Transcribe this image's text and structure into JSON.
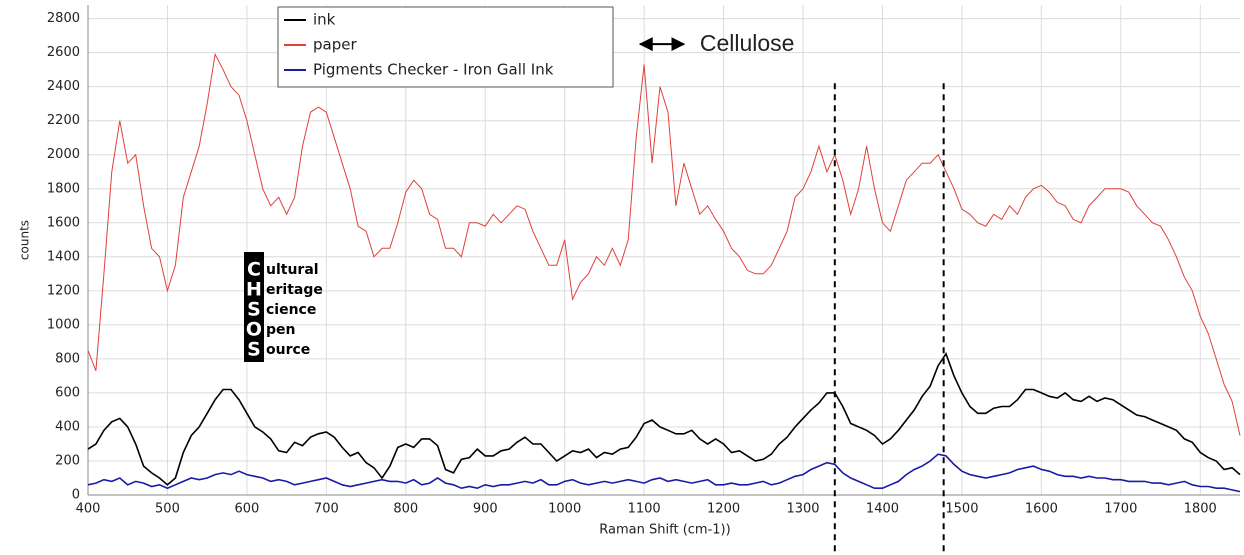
{
  "chart_data": {
    "type": "line",
    "x_label": "Raman Shift (cm-1))",
    "y_label": "counts",
    "xlim": [
      400,
      1850
    ],
    "ylim": [
      0,
      2880
    ],
    "xticks": [
      400,
      500,
      600,
      700,
      800,
      900,
      1000,
      1100,
      1200,
      1300,
      1400,
      1500,
      1600,
      1700,
      1800
    ],
    "yticks": [
      0,
      200,
      400,
      600,
      800,
      1000,
      1200,
      1400,
      1600,
      1800,
      2000,
      2200,
      2400,
      2600,
      2800
    ],
    "grid": true,
    "x": [
      400,
      410,
      420,
      430,
      440,
      450,
      460,
      470,
      480,
      490,
      500,
      510,
      520,
      530,
      540,
      550,
      560,
      570,
      580,
      590,
      600,
      610,
      620,
      630,
      640,
      650,
      660,
      670,
      680,
      690,
      700,
      710,
      720,
      730,
      740,
      750,
      760,
      770,
      780,
      790,
      800,
      810,
      820,
      830,
      840,
      850,
      860,
      870,
      880,
      890,
      900,
      910,
      920,
      930,
      940,
      950,
      960,
      970,
      980,
      990,
      1000,
      1010,
      1020,
      1030,
      1040,
      1050,
      1060,
      1070,
      1080,
      1090,
      1100,
      1110,
      1120,
      1130,
      1140,
      1150,
      1160,
      1170,
      1180,
      1190,
      1200,
      1210,
      1220,
      1230,
      1240,
      1250,
      1260,
      1270,
      1280,
      1290,
      1300,
      1310,
      1320,
      1330,
      1340,
      1350,
      1360,
      1370,
      1380,
      1390,
      1400,
      1410,
      1420,
      1430,
      1440,
      1450,
      1460,
      1470,
      1480,
      1490,
      1500,
      1510,
      1520,
      1530,
      1540,
      1550,
      1560,
      1570,
      1580,
      1590,
      1600,
      1610,
      1620,
      1630,
      1640,
      1650,
      1660,
      1670,
      1680,
      1690,
      1700,
      1710,
      1720,
      1730,
      1740,
      1750,
      1760,
      1770,
      1780,
      1790,
      1800,
      1810,
      1820,
      1830,
      1840,
      1850
    ],
    "series": [
      {
        "name": "ink",
        "color": "#000000",
        "values": [
          270,
          300,
          380,
          430,
          450,
          400,
          300,
          170,
          130,
          100,
          60,
          100,
          250,
          350,
          400,
          480,
          560,
          620,
          620,
          560,
          480,
          400,
          370,
          330,
          260,
          250,
          310,
          290,
          340,
          360,
          370,
          340,
          280,
          230,
          250,
          190,
          160,
          100,
          170,
          280,
          300,
          280,
          330,
          330,
          290,
          150,
          130,
          210,
          220,
          270,
          230,
          230,
          260,
          270,
          310,
          340,
          300,
          300,
          250,
          200,
          230,
          260,
          250,
          270,
          220,
          250,
          240,
          270,
          280,
          340,
          420,
          440,
          400,
          380,
          360,
          360,
          380,
          330,
          300,
          330,
          300,
          250,
          260,
          230,
          200,
          210,
          240,
          300,
          340,
          400,
          450,
          500,
          540,
          600,
          600,
          520,
          420,
          400,
          380,
          350,
          300,
          330,
          380,
          440,
          500,
          580,
          640,
          760,
          830,
          700,
          600,
          520,
          480,
          480,
          510,
          520,
          520,
          560,
          620,
          620,
          600,
          580,
          570,
          600,
          560,
          550,
          580,
          550,
          570,
          560,
          530,
          500,
          470,
          460,
          440,
          420,
          400,
          380,
          330,
          310,
          250,
          220,
          200,
          150,
          160,
          120
        ]
      },
      {
        "name": "paper",
        "color": "#e0403a",
        "values": [
          850,
          730,
          1300,
          1900,
          2200,
          1950,
          2000,
          1700,
          1450,
          1400,
          1200,
          1350,
          1750,
          1900,
          2050,
          2300,
          2590,
          2500,
          2400,
          2350,
          2200,
          2000,
          1800,
          1700,
          1750,
          1650,
          1750,
          2050,
          2250,
          2280,
          2250,
          2100,
          1950,
          1800,
          1580,
          1550,
          1400,
          1450,
          1450,
          1600,
          1780,
          1850,
          1800,
          1650,
          1620,
          1450,
          1450,
          1400,
          1600,
          1600,
          1580,
          1650,
          1600,
          1650,
          1700,
          1680,
          1550,
          1450,
          1350,
          1350,
          1500,
          1150,
          1250,
          1300,
          1400,
          1350,
          1450,
          1350,
          1500,
          2100,
          2530,
          1950,
          2400,
          2250,
          1700,
          1950,
          1800,
          1650,
          1700,
          1620,
          1550,
          1450,
          1400,
          1320,
          1300,
          1300,
          1350,
          1450,
          1550,
          1750,
          1800,
          1900,
          2050,
          1900,
          2000,
          1850,
          1650,
          1800,
          2050,
          1800,
          1600,
          1550,
          1700,
          1850,
          1900,
          1950,
          1950,
          2000,
          1900,
          1800,
          1680,
          1650,
          1600,
          1580,
          1650,
          1620,
          1700,
          1650,
          1750,
          1800,
          1820,
          1780,
          1720,
          1700,
          1620,
          1600,
          1700,
          1750,
          1800,
          1800,
          1800,
          1780,
          1700,
          1650,
          1600,
          1580,
          1500,
          1400,
          1280,
          1200,
          1050,
          950,
          800,
          650,
          550,
          350
        ]
      },
      {
        "name": "Pigments Checker - Iron Gall Ink",
        "color": "#1a1aa8",
        "values": [
          60,
          70,
          90,
          80,
          100,
          60,
          80,
          70,
          50,
          60,
          40,
          60,
          80,
          100,
          90,
          100,
          120,
          130,
          120,
          140,
          120,
          110,
          100,
          80,
          90,
          80,
          60,
          70,
          80,
          90,
          100,
          80,
          60,
          50,
          60,
          70,
          80,
          90,
          80,
          80,
          70,
          90,
          60,
          70,
          100,
          70,
          60,
          40,
          50,
          40,
          60,
          50,
          60,
          60,
          70,
          80,
          70,
          90,
          60,
          60,
          80,
          90,
          70,
          60,
          70,
          80,
          70,
          80,
          90,
          80,
          70,
          90,
          100,
          80,
          90,
          80,
          70,
          80,
          90,
          60,
          60,
          70,
          60,
          60,
          70,
          80,
          60,
          70,
          90,
          110,
          120,
          150,
          170,
          190,
          180,
          130,
          100,
          80,
          60,
          40,
          40,
          60,
          80,
          120,
          150,
          170,
          200,
          240,
          230,
          180,
          140,
          120,
          110,
          100,
          110,
          120,
          130,
          150,
          160,
          170,
          150,
          140,
          120,
          110,
          110,
          100,
          110,
          100,
          100,
          90,
          90,
          80,
          80,
          80,
          70,
          70,
          60,
          70,
          80,
          60,
          50,
          50,
          40,
          40,
          30,
          20
        ]
      }
    ],
    "markers": [
      1340,
      1477
    ],
    "marker_top": 2420,
    "annotation": {
      "text": "Cellulose",
      "arrow": [
        1095,
        1150
      ],
      "y": 2650
    },
    "logo": {
      "letters": [
        "C",
        "H",
        "S",
        "O",
        "S"
      ],
      "words": [
        "ultural",
        "eritage",
        "cience",
        "pen",
        "ource"
      ]
    }
  }
}
